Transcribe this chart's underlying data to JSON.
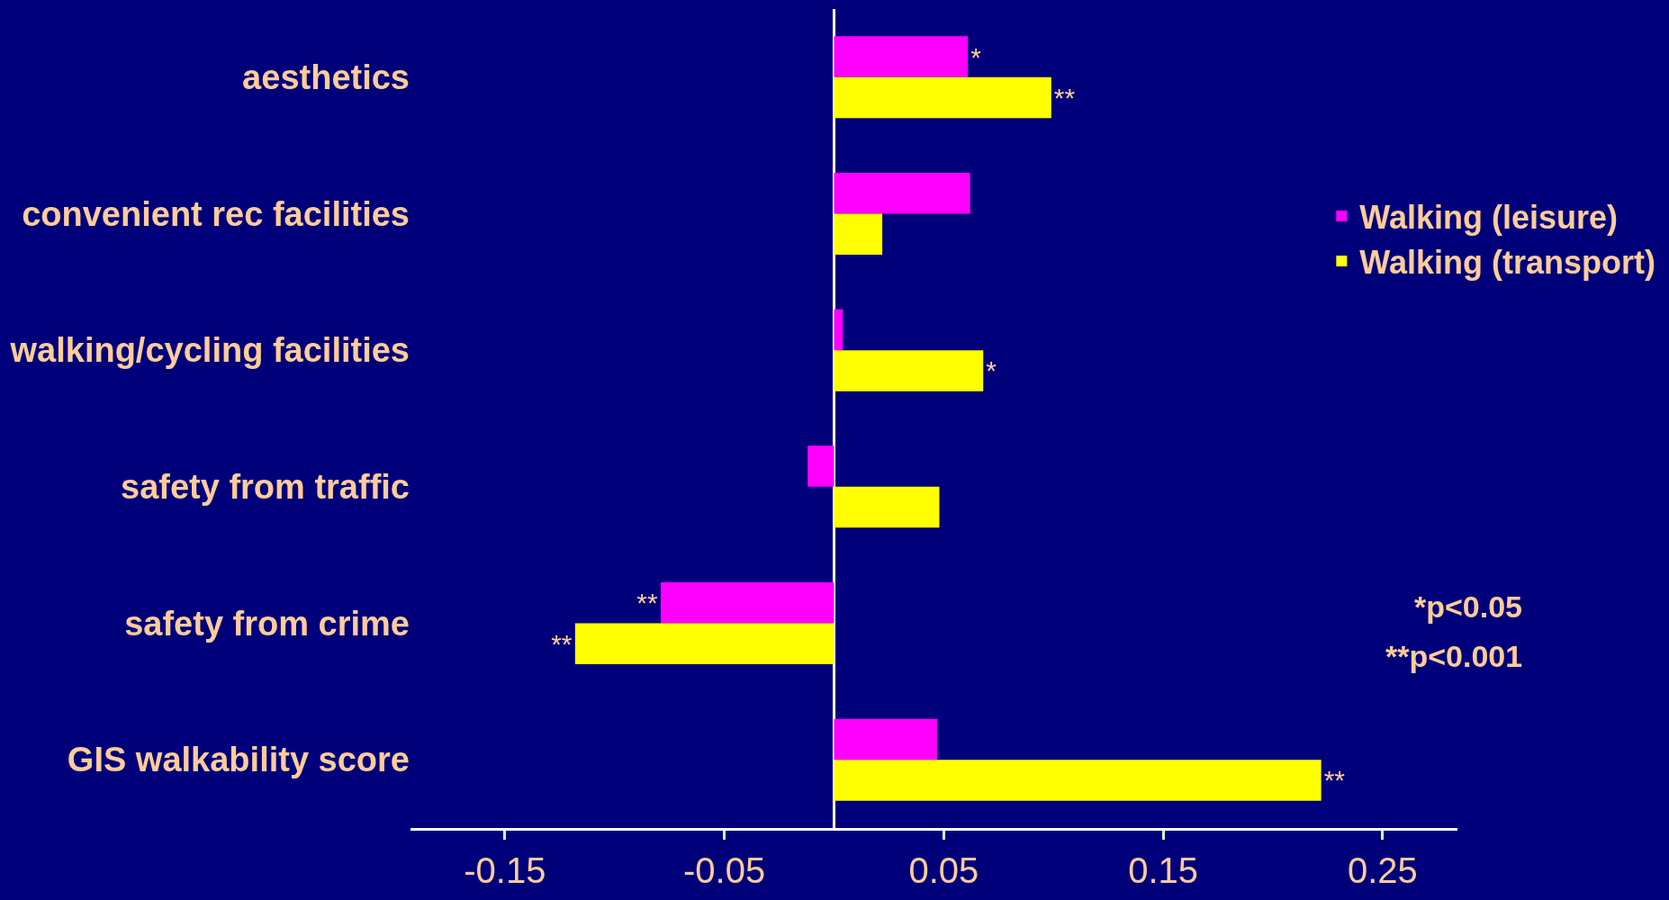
{
  "chart_data": {
    "type": "bar",
    "orientation": "horizontal",
    "categories": [
      "aesthetics",
      "convenient rec facilities",
      "walking/cycling facilities",
      "safety from traffic",
      "safety from crime",
      "GIS walkability score"
    ],
    "series": [
      {
        "name": "Walking (leisure)",
        "color": "#ff00ff",
        "values": [
          0.061,
          0.062,
          0.004,
          -0.012,
          -0.079,
          0.047
        ],
        "value_labels": [
          "*",
          null,
          null,
          null,
          "**",
          null
        ]
      },
      {
        "name": "Walking (transport)",
        "color": "#ffff00",
        "values": [
          0.099,
          0.022,
          0.068,
          0.048,
          -0.118,
          0.222
        ],
        "value_labels": [
          "**",
          null,
          "*",
          null,
          "**",
          "**"
        ]
      }
    ],
    "xlim": [
      -0.193,
      0.284
    ],
    "xticks": [
      -0.15,
      -0.05,
      0.05,
      0.15,
      0.25
    ],
    "grid": false,
    "legend": "right",
    "annotations": [
      "*p<0.05",
      "**p<0.001"
    ]
  }
}
